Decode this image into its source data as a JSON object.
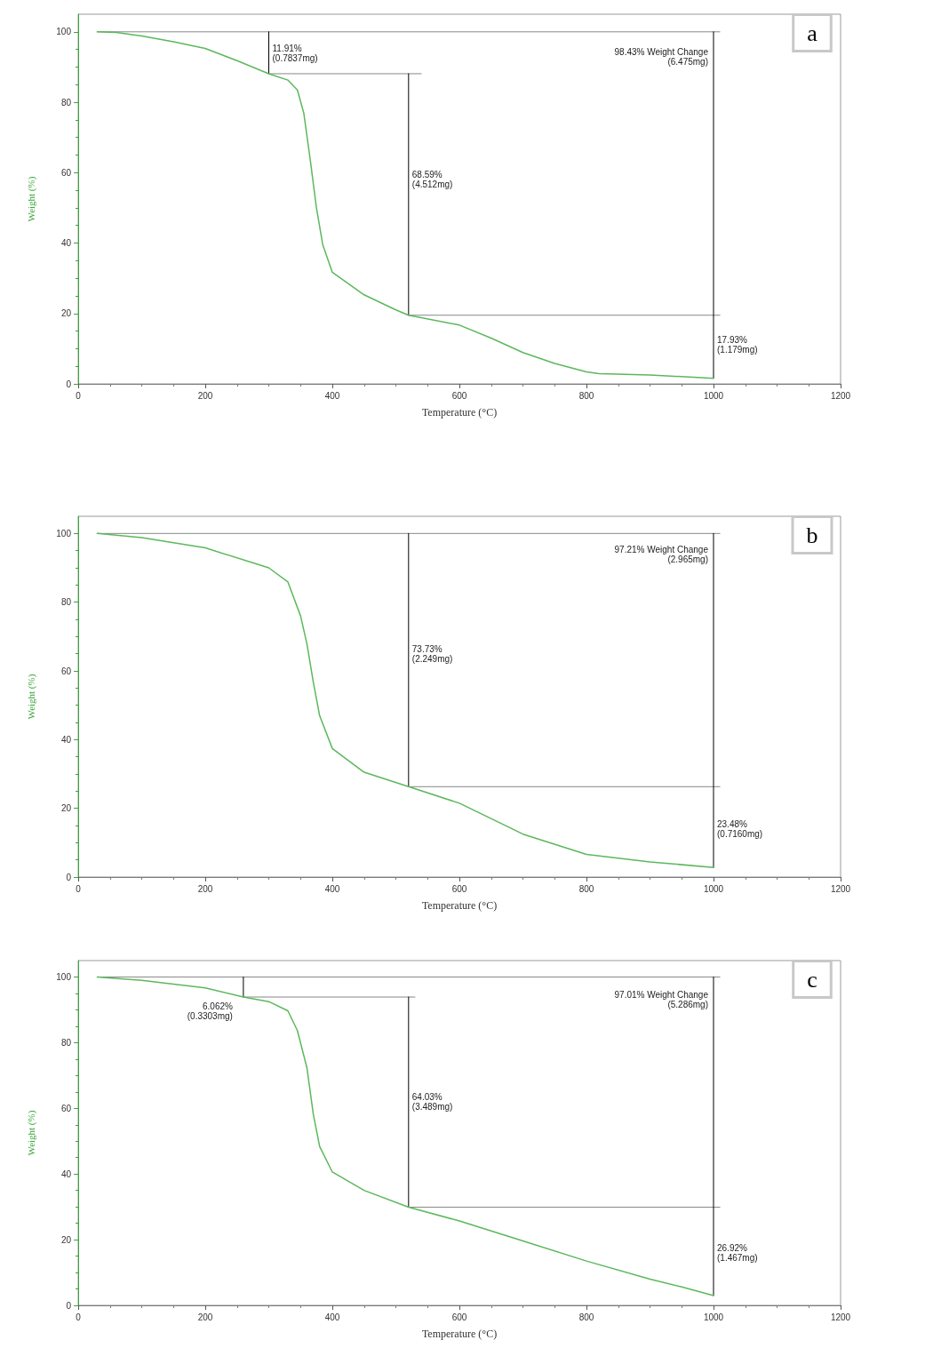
{
  "chart_data": [
    {
      "type": "line",
      "xlabel": "Temperature (°C)",
      "ylabel": "Weight (%)",
      "xlim": [
        0,
        1200
      ],
      "xticks": [
        0,
        200,
        400,
        600,
        800,
        1000,
        1200
      ],
      "ylim": [
        0,
        105
      ],
      "yticks": [
        0,
        20,
        40,
        60,
        80,
        100
      ],
      "marker": "none",
      "line_style": "solid",
      "series": [
        {
          "color": "#5cb85c",
          "x": [
            30,
            60,
            100,
            150,
            200,
            250,
            300,
            330,
            345,
            355,
            365,
            375,
            385,
            400,
            450,
            500,
            520,
            600,
            650,
            700,
            750,
            800,
            820,
            900,
            1000
          ],
          "values": [
            100,
            99.8,
            98.8,
            97.2,
            95.3,
            91.8,
            88.1,
            86.3,
            83.5,
            77,
            64,
            50,
            39.5,
            31.7,
            25.3,
            21,
            19.5,
            16.7,
            13,
            8.9,
            5.8,
            3.4,
            2.9,
            2.5,
            1.6
          ]
        },
        {
          "color": "#888888",
          "x": [
            30,
            1010
          ],
          "values": [
            100,
            100
          ]
        },
        {
          "color": "#888888",
          "x": [
            300,
            540
          ],
          "values": [
            88.1,
            88.1
          ]
        },
        {
          "color": "#888888",
          "x": [
            520,
            1010
          ],
          "values": [
            19.5,
            19.5
          ]
        },
        {
          "color": "#000000",
          "x": [
            300,
            300
          ],
          "values": [
            100,
            88.1
          ]
        },
        {
          "color": "#000000",
          "x": [
            520,
            520
          ],
          "values": [
            88.1,
            19.5
          ]
        },
        {
          "color": "#000000",
          "x": [
            1000,
            1000
          ],
          "values": [
            100,
            1.6
          ]
        }
      ],
      "annotations": [
        "a",
        {
          "text": "11.91%\n(0.7837mg)",
          "x": 300,
          "y": 94
        },
        {
          "text": "68.59%\n(4.512mg)",
          "x": 520,
          "y": 58
        },
        {
          "text": "98.43% Weight Change\n(6.475mg)",
          "x": 1000,
          "y": 93
        },
        {
          "text": "17.93%\n(1.179mg)",
          "x": 1000,
          "y": 11
        }
      ]
    },
    {
      "type": "line",
      "xlabel": "Temperature (°C)",
      "ylabel": "Weight (%)",
      "xlim": [
        0,
        1200
      ],
      "xticks": [
        0,
        200,
        400,
        600,
        800,
        1000,
        1200
      ],
      "ylim": [
        0,
        105
      ],
      "yticks": [
        0,
        20,
        40,
        60,
        80,
        100
      ],
      "marker": "none",
      "line_style": "solid",
      "series": [
        {
          "color": "#5cb85c",
          "x": [
            30,
            100,
            200,
            300,
            330,
            350,
            360,
            370,
            380,
            400,
            450,
            520,
            600,
            700,
            800,
            900,
            1000
          ],
          "values": [
            100,
            98.8,
            95.8,
            90,
            85.9,
            76,
            67.9,
            56.8,
            47,
            37.4,
            30.5,
            26.3,
            21.5,
            12.5,
            6.6,
            4.4,
            2.8
          ]
        },
        {
          "color": "#888888",
          "x": [
            30,
            1010
          ],
          "values": [
            100,
            100
          ]
        },
        {
          "color": "#888888",
          "x": [
            520,
            1010
          ],
          "values": [
            26.3,
            26.3
          ]
        },
        {
          "color": "#000000",
          "x": [
            520,
            520
          ],
          "values": [
            100,
            26.3
          ]
        },
        {
          "color": "#000000",
          "x": [
            1000,
            1000
          ],
          "values": [
            100,
            2.8
          ]
        }
      ],
      "annotations": [
        "b",
        {
          "text": "97.21% Weight Change\n(2.965mg)",
          "x": 1000,
          "y": 94
        },
        {
          "text": "73.73%\n(2.249mg)",
          "x": 520,
          "y": 65
        },
        {
          "text": "23.48%\n(0.7160mg)",
          "x": 1000,
          "y": 14
        }
      ]
    },
    {
      "type": "line",
      "xlabel": "Temperature (°C)",
      "ylabel": "Weight (%)",
      "xlim": [
        0,
        1200
      ],
      "xticks": [
        0,
        200,
        400,
        600,
        800,
        1000,
        1200
      ],
      "ylim": [
        0,
        105
      ],
      "yticks": [
        0,
        20,
        40,
        60,
        80,
        100
      ],
      "marker": "none",
      "line_style": "solid",
      "series": [
        {
          "color": "#5cb85c",
          "x": [
            30,
            100,
            200,
            260,
            300,
            330,
            345,
            360,
            370,
            380,
            400,
            450,
            520,
            600,
            700,
            800,
            900,
            950,
            1000
          ],
          "values": [
            100,
            99,
            96.7,
            93.9,
            92.5,
            89.7,
            83.7,
            72.4,
            58.3,
            48.4,
            40.6,
            35,
            29.9,
            25.7,
            19.6,
            13.5,
            8,
            5.6,
            3
          ]
        },
        {
          "color": "#888888",
          "x": [
            30,
            1010
          ],
          "values": [
            100,
            100
          ]
        },
        {
          "color": "#888888",
          "x": [
            260,
            530
          ],
          "values": [
            93.9,
            93.9
          ]
        },
        {
          "color": "#888888",
          "x": [
            520,
            1010
          ],
          "values": [
            29.9,
            29.9
          ]
        },
        {
          "color": "#000000",
          "x": [
            260,
            260
          ],
          "values": [
            100,
            93.9
          ]
        },
        {
          "color": "#000000",
          "x": [
            520,
            520
          ],
          "values": [
            93.9,
            29.9
          ]
        },
        {
          "color": "#000000",
          "x": [
            1000,
            1000
          ],
          "values": [
            100,
            3
          ]
        }
      ],
      "annotations": [
        "c",
        {
          "text": "6.062%\n(0.3303mg)",
          "x": 260,
          "y": 93.9
        },
        {
          "text": "64.03%\n(3.489mg)",
          "x": 520,
          "y": 62
        },
        {
          "text": "97.01% Weight Change\n(5.286mg)",
          "x": 1000,
          "y": 93
        },
        {
          "text": "26.92%\n(1.467mg)",
          "x": 1000,
          "y": 16
        }
      ]
    }
  ]
}
